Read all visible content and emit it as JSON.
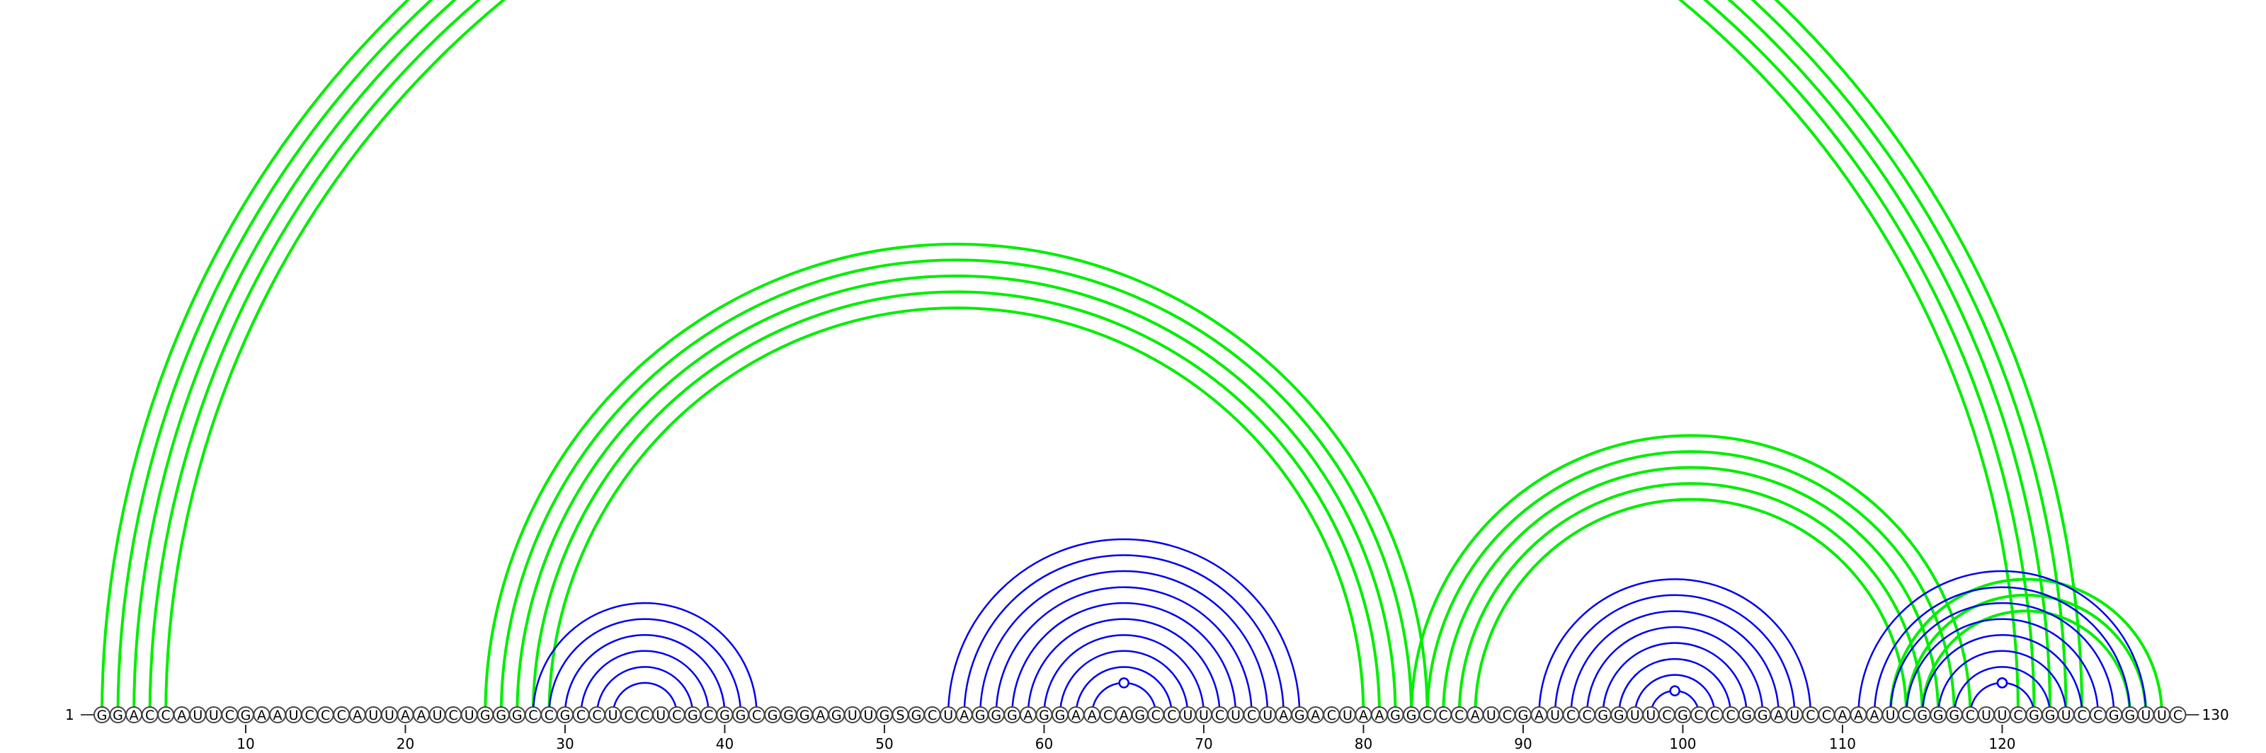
{
  "diagram": {
    "sequence": "GGACCAUUCGAAUCCCAUUAAUCUGGGCCGCCUCCUCGCGGCGGGAGUUGSGCUAGGGAGGAACAGCCUUCUCUAGACUAAGGCCCAUCGAUCCGGUUCGCCCGGAUCCAAAUCGGGCUUCGGUCCGGUUC",
    "start_label": "1",
    "end_label": "130",
    "tick_labels": [
      "10",
      "20",
      "30",
      "40",
      "50",
      "60",
      "70",
      "80",
      "90",
      "100",
      "110",
      "120"
    ],
    "colors": {
      "primary_arcs": "#0000ee",
      "alternate_arcs": "#00ee00"
    },
    "primary_pairs": [
      [
        28,
        42
      ],
      [
        29,
        41
      ],
      [
        30,
        40
      ],
      [
        31,
        39
      ],
      [
        32,
        38
      ],
      [
        33,
        37
      ],
      [
        54,
        76
      ],
      [
        55,
        75
      ],
      [
        56,
        74
      ],
      [
        57,
        73
      ],
      [
        58,
        72
      ],
      [
        59,
        71
      ],
      [
        60,
        70
      ],
      [
        61,
        69
      ],
      [
        62,
        68
      ],
      [
        63,
        67
      ],
      [
        91,
        108
      ],
      [
        92,
        107
      ],
      [
        93,
        106
      ],
      [
        94,
        105
      ],
      [
        95,
        104
      ],
      [
        96,
        103
      ],
      [
        97,
        102
      ],
      [
        98,
        101
      ],
      [
        111,
        129
      ],
      [
        112,
        128
      ],
      [
        113,
        127
      ],
      [
        114,
        126
      ],
      [
        115,
        125
      ],
      [
        116,
        124
      ],
      [
        117,
        123
      ],
      [
        118,
        122
      ]
    ],
    "alternate_pairs": [
      [
        1,
        125
      ],
      [
        2,
        124
      ],
      [
        3,
        123
      ],
      [
        4,
        122
      ],
      [
        5,
        121
      ],
      [
        25,
        84
      ],
      [
        26,
        83
      ],
      [
        27,
        82
      ],
      [
        28,
        81
      ],
      [
        29,
        80
      ],
      [
        83,
        118
      ],
      [
        84,
        117
      ],
      [
        85,
        116
      ],
      [
        86,
        115
      ],
      [
        87,
        114
      ],
      [
        113,
        130
      ],
      [
        114,
        129
      ],
      [
        115,
        128
      ]
    ],
    "markers": [
      {
        "position": 65,
        "set": "primary"
      },
      {
        "position": 99,
        "set": "primary"
      },
      {
        "position": 120,
        "set": "primary"
      },
      {
        "position": 120.5,
        "set": "primary"
      },
      {
        "position": 119.5,
        "set": "primary"
      },
      {
        "position": 66,
        "set": "alternate"
      }
    ]
  }
}
